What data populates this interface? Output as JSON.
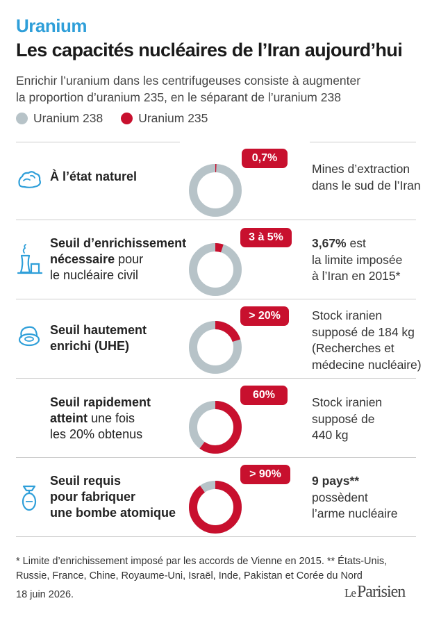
{
  "header": {
    "kicker": "Uranium",
    "title": "Les capacités nucléaires de l’Iran aujourd’hui",
    "subtitle_line1": "Enrichir l’uranium dans les centrifugeuses consiste à augmenter",
    "subtitle_line2": "la proportion d’uranium 235, en le séparant de l’uranium 238"
  },
  "legend": [
    {
      "label": "Uranium 238",
      "color": "#b7c3c8"
    },
    {
      "label": "Uranium 235",
      "color": "#c8102e"
    }
  ],
  "colors": {
    "u238": "#b7c3c8",
    "u235": "#c8102e",
    "accent": "#2f9fd9"
  },
  "rows": [
    {
      "icon": "rock-icon",
      "label": {
        "bold1": "À l’état naturel",
        "rest1": "",
        "bold2": "",
        "rest2": "",
        "line3": ""
      },
      "pill": "0,7%",
      "note": {
        "b1": "",
        "l1": "Mines d’extraction",
        "l2": "dans le sud de l’Iran",
        "l3": "",
        "l4": ""
      }
    },
    {
      "icon": "power-plant-icon",
      "label": {
        "bold1": "Seuil d’enrichissement",
        "rest1": "",
        "bold2": "nécessaire",
        "rest2": " pour",
        "line3": "le nucléaire civil"
      },
      "pill": "3 à 5%",
      "note": {
        "b1": "3,67%",
        "l1": " est",
        "l2": "la limite imposée",
        "l3": "à l’Iran en 2015*",
        "l4": ""
      }
    },
    {
      "icon": "lab-icon",
      "label": {
        "bold1": "Seuil hautement",
        "rest1": "",
        "bold2": "enrichi (UHE)",
        "rest2": "",
        "line3": ""
      },
      "pill": "> 20%",
      "note": {
        "b1": "",
        "l1": "Stock iranien",
        "l2": "supposé de 184 kg",
        "l3": "(Recherches et",
        "l4": "médecine nucléaire)"
      }
    },
    {
      "icon": "",
      "label": {
        "bold1": "Seuil rapidement",
        "rest1": "",
        "bold2": "atteint",
        "rest2": " une fois",
        "line3": "les 20% obtenus"
      },
      "pill": "60%",
      "note": {
        "b1": "",
        "l1": "Stock iranien",
        "l2": "supposé de",
        "l3": "440 kg",
        "l4": ""
      }
    },
    {
      "icon": "bomb-icon",
      "label": {
        "bold1": "Seuil requis",
        "rest1": "",
        "bold2": "pour fabriquer",
        "rest2": "",
        "line3": "une bombe atomique",
        "line3_bold": true
      },
      "pill": "> 90%",
      "note": {
        "b1": "9 pays**",
        "l1": "",
        "l2": "possèdent",
        "l3": "l’arme nucléaire",
        "l4": ""
      }
    }
  ],
  "chart_data": {
    "type": "pie",
    "title": "",
    "series": [
      {
        "name": "Uranium 235",
        "values": [
          0.7,
          5,
          20,
          60,
          90
        ]
      }
    ],
    "categories": [
      "À l’état naturel",
      "Seuil d’enrichissement nécessaire pour le nucléaire civil",
      "Seuil hautement enrichi (UHE)",
      "Seuil rapidement atteint une fois les 20% obtenus",
      "Seuil requis pour fabriquer une bombe atomique"
    ],
    "labels": [
      "0,7%",
      "3 à 5%",
      "> 20%",
      "60%",
      "> 90%"
    ]
  },
  "footer": {
    "footnote_line1": "* Limite d’enrichissement imposé par les accords de Vienne en 2015. ** États-Unis,",
    "footnote_line2": "Russie, France, Chine, Royaume-Uni, Israël, Inde, Pakistan et Corée du Nord",
    "date": "18 juin 2026.",
    "logo_le": "Le",
    "logo_name": "Parisien"
  }
}
